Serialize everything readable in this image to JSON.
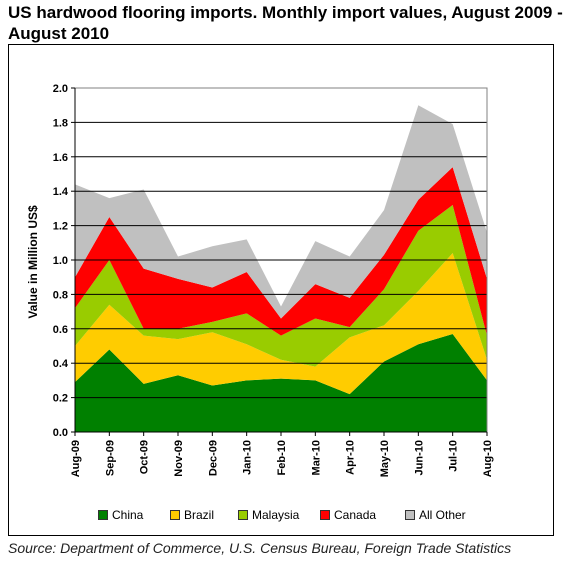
{
  "title": "US hardwood flooring imports. Monthly import values, August 2009 - August 2010",
  "source": "Source: Department of Commerce, U.S. Census Bureau, Foreign Trade Statistics",
  "chart_data": {
    "type": "area",
    "stacked": true,
    "ylabel": "Value in Million US$",
    "ylim": [
      0,
      2.0
    ],
    "yticks": [
      "0.0",
      "0.2",
      "0.4",
      "0.6",
      "0.8",
      "1.0",
      "1.2",
      "1.4",
      "1.6",
      "1.8",
      "2.0"
    ],
    "grid": true,
    "legend_position": "bottom",
    "categories": [
      "Aug-09",
      "Sep-09",
      "Oct-09",
      "Nov-09",
      "Dec-09",
      "Jan-10",
      "Feb-10",
      "Mar-10",
      "Apr-10",
      "May-10",
      "Jun-10",
      "Jul-10",
      "Aug-10"
    ],
    "series": [
      {
        "name": "China",
        "color": "#008000",
        "values": [
          0.29,
          0.48,
          0.28,
          0.33,
          0.27,
          0.3,
          0.31,
          0.3,
          0.22,
          0.41,
          0.51,
          0.57,
          0.3
        ]
      },
      {
        "name": "Brazil",
        "color": "#FFCC00",
        "values": [
          0.21,
          0.26,
          0.28,
          0.21,
          0.31,
          0.21,
          0.11,
          0.08,
          0.33,
          0.21,
          0.31,
          0.47,
          0.12
        ]
      },
      {
        "name": "Malaysia",
        "color": "#99CC00",
        "values": [
          0.22,
          0.26,
          0.04,
          0.06,
          0.06,
          0.18,
          0.14,
          0.28,
          0.06,
          0.21,
          0.35,
          0.28,
          0.14
        ]
      },
      {
        "name": "Canada",
        "color": "#FF0000",
        "values": [
          0.18,
          0.25,
          0.35,
          0.29,
          0.2,
          0.24,
          0.1,
          0.2,
          0.17,
          0.2,
          0.18,
          0.22,
          0.33
        ]
      },
      {
        "name": "All Other",
        "color": "#C0C0C0",
        "values": [
          0.54,
          0.11,
          0.46,
          0.13,
          0.24,
          0.19,
          0.07,
          0.25,
          0.24,
          0.26,
          0.55,
          0.25,
          0.27
        ]
      }
    ]
  }
}
